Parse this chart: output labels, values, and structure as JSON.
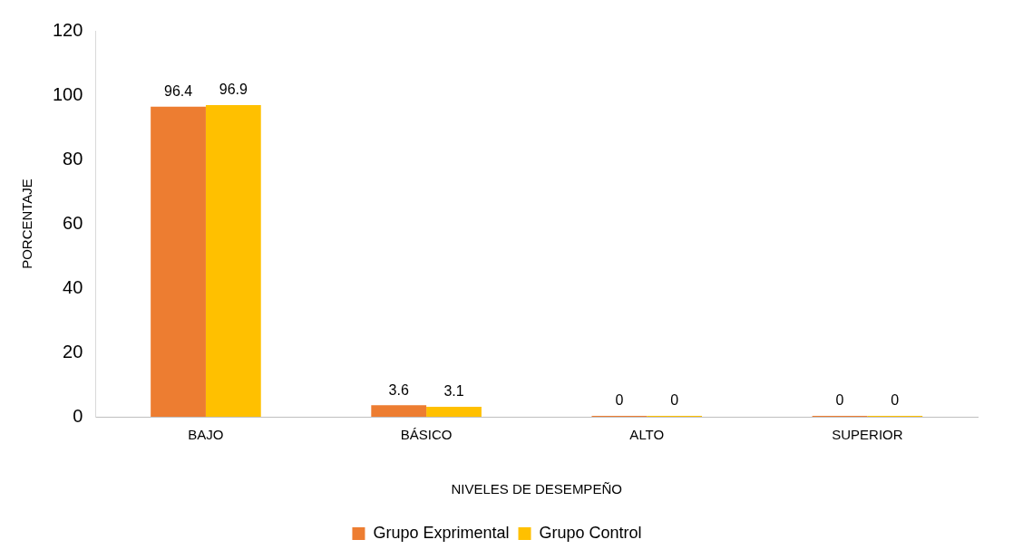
{
  "chart_data": {
    "type": "bar",
    "xlabel": "NIVELES DE DESEMPEÑO",
    "ylabel": "PORCENTAJE",
    "categories": [
      "BAJO",
      "BÁSICO",
      "ALTO",
      "SUPERIOR"
    ],
    "series": [
      {
        "name": "Grupo Exprimental",
        "color": "#ed7d31",
        "values": [
          96.4,
          3.6,
          0,
          0
        ]
      },
      {
        "name": "Grupo Control",
        "color": "#ffc000",
        "values": [
          96.9,
          3.1,
          0,
          0
        ]
      }
    ],
    "ylim": [
      0,
      120
    ],
    "yticks": [
      0,
      20,
      40,
      60,
      80,
      100,
      120
    ],
    "grid": false,
    "legend": "bottom",
    "data_labels": true
  }
}
